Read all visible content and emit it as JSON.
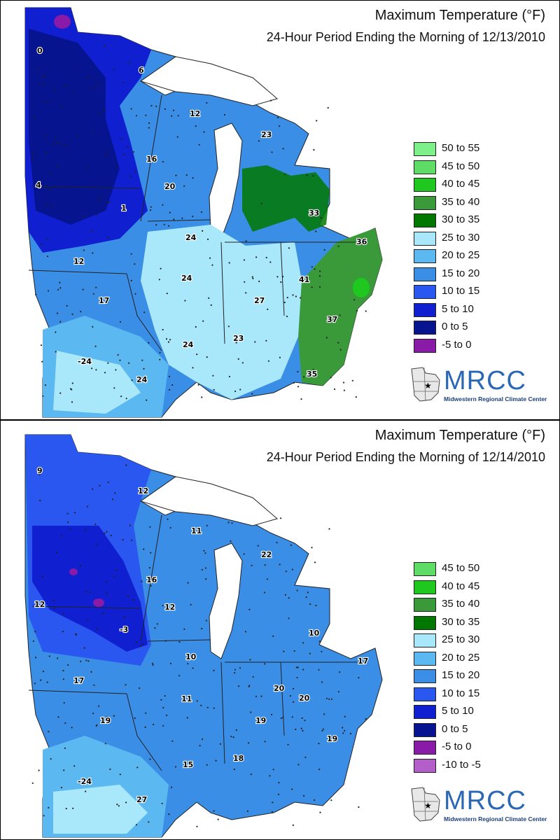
{
  "panels": [
    {
      "title": "Maximum Temperature (°F)",
      "subtitle": "24-Hour Period Ending the Morning of 12/13/2010",
      "legend": [
        {
          "label": "50 to 55",
          "color": "#7df08a"
        },
        {
          "label": "45 to 50",
          "color": "#5fdc66"
        },
        {
          "label": "40 to 45",
          "color": "#1ec81e"
        },
        {
          "label": "35 to 40",
          "color": "#3a9a3a"
        },
        {
          "label": "30 to 35",
          "color": "#007800"
        },
        {
          "label": "25 to 30",
          "color": "#a9e8fa"
        },
        {
          "label": "20 to 25",
          "color": "#5bb8f0"
        },
        {
          "label": "15 to 20",
          "color": "#3a8ee6"
        },
        {
          "label": "10 to 15",
          "color": "#2a57f0"
        },
        {
          "label": "5 to 10",
          "color": "#1020d0"
        },
        {
          "label": "0 to 5",
          "color": "#061490"
        },
        {
          "label": "-5 to 0",
          "color": "#8a1aa8"
        }
      ],
      "values": [
        "0",
        "6",
        "12",
        "23",
        "16",
        "20",
        "4",
        "1",
        "33",
        "24",
        "36",
        "12",
        "24",
        "41",
        "17",
        "27",
        "37",
        "23",
        "24",
        "-24",
        "35",
        "24"
      ]
    },
    {
      "title": "Maximum Temperature (°F)",
      "subtitle": "24-Hour Period Ending the Morning of 12/14/2010",
      "legend": [
        {
          "label": "45 to 50",
          "color": "#5fdc66"
        },
        {
          "label": "40 to 45",
          "color": "#1ec81e"
        },
        {
          "label": "35 to 40",
          "color": "#3a9a3a"
        },
        {
          "label": "30 to 35",
          "color": "#007800"
        },
        {
          "label": "25 to 30",
          "color": "#a9e8fa"
        },
        {
          "label": "20 to 25",
          "color": "#5bb8f0"
        },
        {
          "label": "15 to 20",
          "color": "#3a8ee6"
        },
        {
          "label": "10 to 15",
          "color": "#2a57f0"
        },
        {
          "label": "5 to 10",
          "color": "#1020d0"
        },
        {
          "label": "0 to 5",
          "color": "#061490"
        },
        {
          "label": "-5 to 0",
          "color": "#8a1aa8"
        },
        {
          "label": "-10 to -5",
          "color": "#b35ec9"
        }
      ],
      "values": [
        "9",
        "12",
        "11",
        "22",
        "16",
        "12",
        "12",
        "-3",
        "10",
        "10",
        "17",
        "17",
        "20",
        "20",
        "11",
        "19",
        "19",
        "19",
        "18",
        "15",
        "-24",
        "27"
      ]
    }
  ],
  "logo": {
    "name": "MRCC",
    "full_name": "Midwestern Regional Climate Center"
  }
}
